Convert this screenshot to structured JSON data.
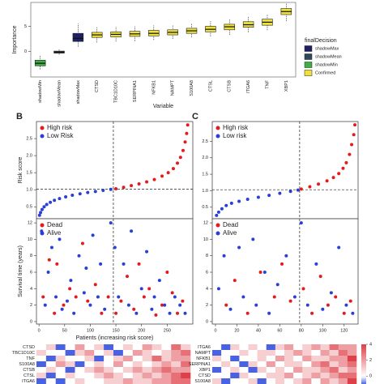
{
  "chart_data": [
    {
      "type": "box",
      "ylabel": "Importance",
      "xlabel": "Variable",
      "categories": [
        "shadowMin",
        "shadowMean",
        "shadowMax",
        "CTSD",
        "TBC1D10C",
        "SERPINA1",
        "NFKB1",
        "NAMPT",
        "S100A8",
        "CTSL",
        "CTSB",
        "ITGA6",
        "TNF",
        "XBP1"
      ],
      "groups": [
        "shadowMin",
        "shadowMean",
        "shadowMax",
        "Confirmed",
        "Confirmed",
        "Confirmed",
        "Confirmed",
        "Confirmed",
        "Confirmed",
        "Confirmed",
        "Confirmed",
        "Confirmed",
        "Confirmed",
        "Confirmed"
      ],
      "boxes": [
        [
          -3.5,
          -2.8,
          -2.3,
          -1.7,
          -0.8
        ],
        [
          -0.6,
          -0.3,
          -0.1,
          0.1,
          0.6
        ],
        [
          1,
          2,
          2.6,
          3.6,
          5.5
        ],
        [
          1.8,
          2.8,
          3.3,
          3.8,
          4.8
        ],
        [
          2,
          2.9,
          3.4,
          3.9,
          4.9
        ],
        [
          2.1,
          3,
          3.5,
          4,
          5
        ],
        [
          2.3,
          3.1,
          3.6,
          4.2,
          5.2
        ],
        [
          2.5,
          3.3,
          3.8,
          4.3,
          5.3
        ],
        [
          2.8,
          3.6,
          4.1,
          4.6,
          5.6
        ],
        [
          3,
          3.9,
          4.4,
          5,
          6
        ],
        [
          3.3,
          4.3,
          4.9,
          5.4,
          6.5
        ],
        [
          3.8,
          4.8,
          5.3,
          5.9,
          7
        ],
        [
          4.2,
          5.2,
          5.8,
          6.4,
          7.4
        ],
        [
          6,
          7.3,
          7.9,
          8.5,
          9.5
        ]
      ],
      "ylim": [
        -5,
        9.7
      ],
      "yticks": [
        0,
        5
      ],
      "legend_title": "finalDecision",
      "legend": [
        {
          "name": "shadowMax",
          "color": "#1f1f66"
        },
        {
          "name": "shadowMean",
          "color": "#2e4a57"
        },
        {
          "name": "shadowMin",
          "color": "#3cb043"
        },
        {
          "name": "Confirmed",
          "color": "#eee23a"
        }
      ]
    },
    {
      "type": "scatter",
      "label": "B",
      "ylabel": "Risk score",
      "xlim": [
        -5,
        300
      ],
      "ylim": [
        0.15,
        3.0
      ],
      "yticks": [
        0.5,
        {
          "value": 1.0,
          "label": "1.0"
        },
        1.5,
        {
          "value": 2.0,
          "label": "2.0"
        },
        2.5
      ],
      "vline": 145,
      "hline": 1.02,
      "series": [
        {
          "name": "High risk",
          "color": "#e41a1c",
          "x": [
            150,
            165,
            180,
            195,
            210,
            225,
            240,
            252,
            262,
            270,
            276,
            281,
            285,
            288,
            290
          ],
          "values": [
            1.03,
            1.07,
            1.12,
            1.17,
            1.23,
            1.3,
            1.4,
            1.5,
            1.62,
            1.78,
            1.95,
            2.15,
            2.4,
            2.65,
            2.9
          ]
        },
        {
          "name": "Low Risk",
          "color": "#2a3fd6",
          "x": [
            1,
            3,
            6,
            10,
            15,
            22,
            30,
            40,
            52,
            65,
            80,
            95,
            110,
            125,
            140
          ],
          "values": [
            0.25,
            0.33,
            0.42,
            0.5,
            0.57,
            0.63,
            0.69,
            0.74,
            0.79,
            0.84,
            0.88,
            0.92,
            0.95,
            0.98,
            1.01
          ]
        }
      ]
    },
    {
      "type": "scatter",
      "ylabel": "Survival time (years)",
      "xlabel": "Patients (increasing risk score)",
      "xlim": [
        -5,
        300
      ],
      "ylim": [
        -0.3,
        12.5
      ],
      "yticks": [
        0,
        2,
        4,
        6,
        8,
        10,
        12
      ],
      "xticks": [
        0,
        50,
        100,
        150,
        200,
        250
      ],
      "vline": 145,
      "series": [
        {
          "name": "Dead",
          "color": "#e41a1c",
          "x": [
            8,
            20,
            30,
            35,
            48,
            60,
            72,
            85,
            95,
            110,
            122,
            135,
            150,
            160,
            172,
            185,
            195,
            205,
            215,
            228,
            240,
            250,
            260,
            270,
            280
          ],
          "values": [
            3,
            7.5,
            1,
            7,
            2,
            4,
            3,
            9.5,
            2.5,
            4.5,
            1,
            3,
            1,
            2.5,
            5.5,
            1.5,
            7,
            3,
            4,
            0.8,
            2,
            6,
            3.5,
            1,
            2.5
          ]
        },
        {
          "name": "Alive",
          "color": "#2a3fd6",
          "x": [
            5,
            12,
            18,
            25,
            33,
            40,
            45,
            55,
            62,
            68,
            78,
            88,
            92,
            100,
            105,
            115,
            120,
            128,
            140,
            148,
            155,
            165,
            175,
            180,
            190,
            200,
            210,
            220,
            225,
            235,
            245,
            255,
            265,
            275,
            285
          ],
          "values": [
            11,
            2,
            6,
            9,
            3,
            10,
            1.5,
            2.5,
            5,
            1,
            8,
            3.5,
            6.5,
            2,
            10.5,
            3,
            7,
            1.5,
            12,
            9,
            3,
            7,
            2,
            11,
            1,
            4,
            8.5,
            1.5,
            3,
            5,
            2,
            1,
            3,
            2,
            1
          ]
        }
      ]
    },
    {
      "type": "scatter",
      "label": "C",
      "xlim": [
        -3,
        133
      ],
      "ylim": [
        0.15,
        3.1
      ],
      "yticks": [
        0.5,
        {
          "value": 1.0,
          "label": "1.0"
        },
        1.5,
        {
          "value": 2.0,
          "label": "2.0"
        },
        2.5
      ],
      "vline": 78.5,
      "hline": 1.03,
      "series": [
        {
          "name": "High risk",
          "color": "#e41a1c",
          "x": [
            80,
            88,
            96,
            104,
            110,
            115,
            119,
            122,
            125,
            127,
            129,
            130
          ],
          "values": [
            1.05,
            1.12,
            1.2,
            1.3,
            1.4,
            1.52,
            1.68,
            1.85,
            2.1,
            2.4,
            2.7,
            3.0
          ]
        },
        {
          "name": "Low risk",
          "color": "#2a3fd6",
          "x": [
            1,
            3,
            6,
            10,
            15,
            22,
            30,
            40,
            50,
            60,
            70,
            77
          ],
          "values": [
            0.25,
            0.35,
            0.45,
            0.55,
            0.62,
            0.68,
            0.74,
            0.8,
            0.86,
            0.92,
            0.98,
            1.02
          ]
        }
      ]
    },
    {
      "type": "scatter",
      "xlim": [
        -3,
        133
      ],
      "ylim": [
        -0.3,
        12.5
      ],
      "yticks": [
        0,
        2,
        4,
        6,
        8,
        10,
        12
      ],
      "xticks": [
        0,
        20,
        40,
        60,
        80,
        100,
        120
      ],
      "vline": 78.5,
      "series": [
        {
          "name": "Dead",
          "color": "#e41a1c",
          "x": [
            10,
            18,
            30,
            42,
            55,
            62,
            70,
            82,
            90,
            98,
            105,
            112,
            120,
            126
          ],
          "values": [
            2,
            5,
            1,
            6,
            3,
            7,
            2.5,
            4,
            1,
            5.5,
            2,
            3,
            1,
            2.5
          ]
        },
        {
          "name": "Alive",
          "color": "#2a3fd6",
          "x": [
            3,
            8,
            14,
            22,
            26,
            35,
            38,
            46,
            50,
            58,
            66,
            74,
            80,
            86,
            94,
            100,
            108,
            115,
            122,
            128
          ],
          "values": [
            4,
            8,
            1.5,
            9,
            3,
            10,
            2,
            6,
            1,
            4.5,
            8,
            3,
            12,
            2,
            7,
            1.5,
            3.5,
            9,
            2,
            1
          ]
        }
      ]
    },
    {
      "type": "heatmap",
      "rows": [
        "CTSD",
        "TBC1D10C",
        "TNF",
        "S100A8",
        "CTSB",
        "CTSL",
        "ITGA6"
      ],
      "zlim": [
        -1,
        4
      ],
      "values": [
        [
          0,
          1,
          -1,
          0,
          2,
          0,
          1,
          -1,
          0,
          1,
          0,
          2,
          1,
          0,
          3,
          1
        ],
        [
          1,
          0,
          0,
          -1,
          1,
          2,
          0,
          1,
          -1,
          0,
          2,
          1,
          0,
          1,
          2,
          3
        ],
        [
          0,
          -1,
          1,
          0,
          0,
          1,
          -1,
          0,
          1,
          2,
          0,
          1,
          3,
          1,
          2,
          2
        ],
        [
          -1,
          0,
          2,
          1,
          -1,
          0,
          1,
          0,
          2,
          0,
          1,
          0,
          1,
          2,
          1,
          3
        ],
        [
          0,
          1,
          0,
          -1,
          0,
          1,
          2,
          1,
          0,
          1,
          2,
          1,
          2,
          3,
          2,
          2
        ],
        [
          1,
          -1,
          0,
          1,
          0,
          0,
          1,
          2,
          1,
          0,
          1,
          2,
          1,
          2,
          3,
          4
        ],
        [
          -1,
          0,
          -1,
          0,
          1,
          0,
          0,
          1,
          1,
          2,
          1,
          1,
          2,
          2,
          3,
          3
        ]
      ]
    },
    {
      "type": "heatmap",
      "rows": [
        "ITGA6",
        "NAMPT",
        "NFKB1",
        "SERPINA1",
        "XBP1",
        "CTSD",
        "S100A8"
      ],
      "zlim": [
        -1,
        4
      ],
      "zticks": [
        0,
        2,
        4
      ],
      "values": [
        [
          0,
          -1,
          1,
          0,
          1,
          0,
          -1,
          1,
          2,
          0,
          1,
          2,
          1,
          3,
          2,
          2
        ],
        [
          -1,
          0,
          0,
          1,
          0,
          1,
          1,
          0,
          1,
          2,
          1,
          0,
          2,
          1,
          3,
          2
        ],
        [
          1,
          0,
          -1,
          0,
          0,
          1,
          0,
          2,
          1,
          0,
          2,
          1,
          1,
          2,
          2,
          4
        ],
        [
          0,
          1,
          0,
          -1,
          1,
          0,
          2,
          0,
          1,
          1,
          0,
          2,
          3,
          1,
          2,
          3
        ],
        [
          -1,
          0,
          1,
          0,
          -1,
          1,
          0,
          1,
          0,
          2,
          1,
          1,
          2,
          3,
          1,
          2
        ],
        [
          0,
          0,
          -1,
          1,
          0,
          0,
          1,
          1,
          2,
          0,
          1,
          2,
          1,
          2,
          3,
          3
        ],
        [
          1,
          -1,
          0,
          0,
          1,
          -1,
          0,
          1,
          0,
          1,
          2,
          0,
          2,
          1,
          2,
          4
        ]
      ]
    }
  ]
}
